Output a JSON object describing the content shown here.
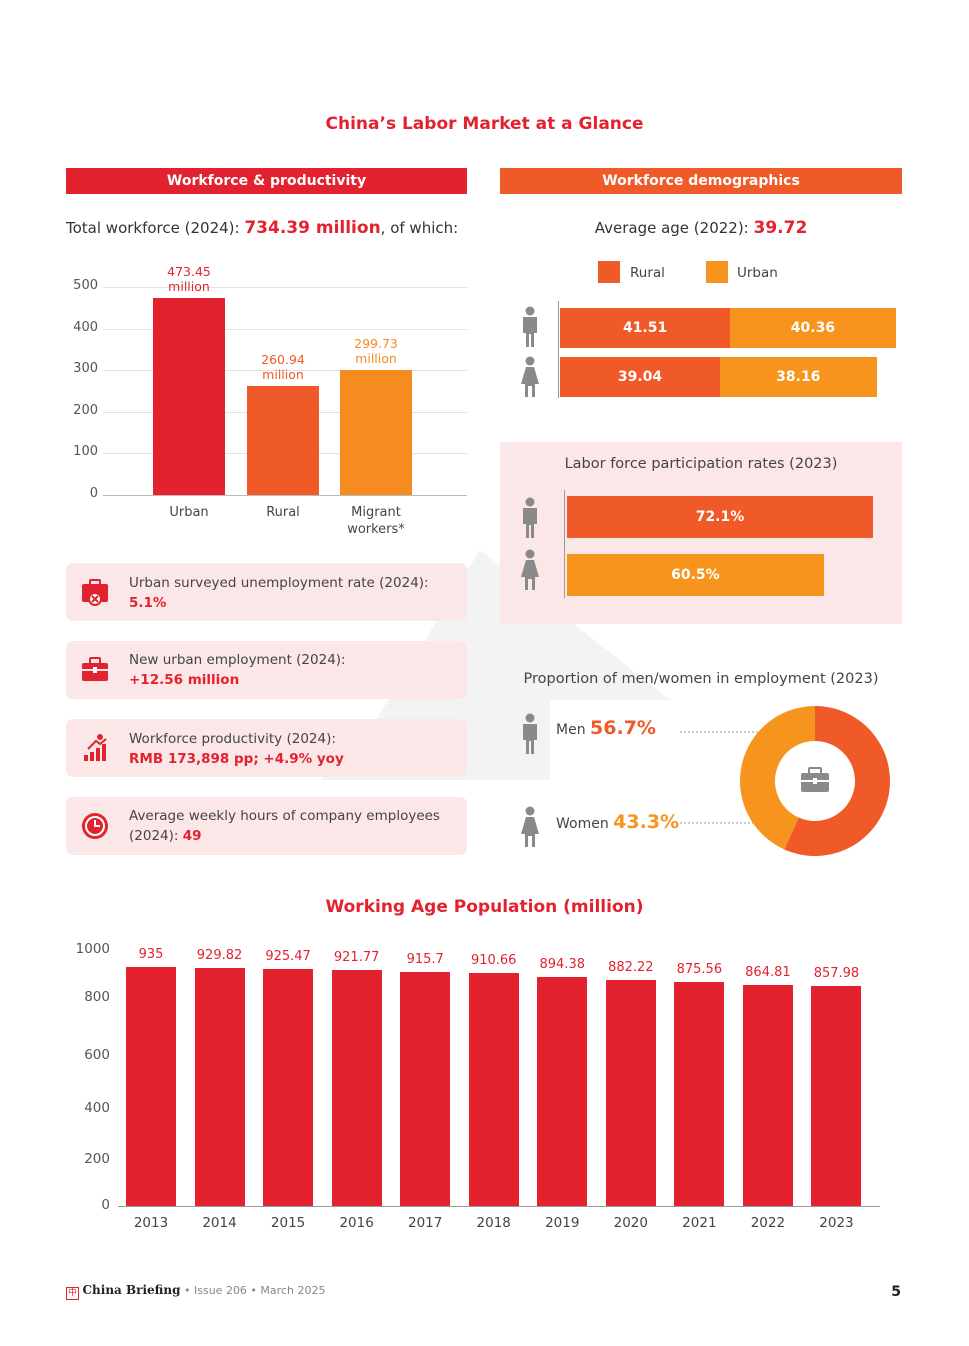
{
  "page_title": "China’s Labor Market at a Glance",
  "left": {
    "banner": "Workforce & productivity",
    "total_prefix": "Total workforce (2024): ",
    "total_value": "734.39 million",
    "total_suffix": ", of which:",
    "cards": [
      {
        "label": "Urban surveyed unemployment rate (2024):",
        "value": "5.1%"
      },
      {
        "label": "New urban employment (2024):",
        "value": "+12.56 million"
      },
      {
        "label": "Workforce productivity (2024):",
        "value": "RMB 173,898 pp; +4.9% yoy"
      },
      {
        "label": "Average weekly hours of company employees",
        "label2": "(2024): ",
        "value": "49"
      }
    ]
  },
  "right": {
    "banner": "Workforce demographics",
    "avg_prefix": "Average age (2022): ",
    "avg_value": "39.72",
    "lfpr_title": "Labor force participation rates (2023)",
    "proportion_title": "Proportion of men/women in employment (2023)",
    "men_label": "Men",
    "men_value": "56.7%",
    "women_label": "Women",
    "women_value": "43.3%"
  },
  "colors": {
    "red": "#e3222f",
    "orange_red": "#f05a28",
    "orange": "#f68b1f",
    "amber": "#f7941d",
    "pink_panel": "#fbe7e7",
    "gray_icon": "#8a8a8a"
  },
  "chart_data": [
    {
      "type": "bar",
      "categories": [
        "Urban",
        "Rural",
        "Migrant workers*"
      ],
      "values": [
        473.45,
        260.94,
        299.73
      ],
      "value_labels": [
        "473.45\nmillion",
        "260.94\nmillion",
        "299.73\nmillion"
      ],
      "ylim": [
        0,
        500
      ],
      "yticks": [
        0,
        100,
        200,
        300,
        400,
        500
      ],
      "grid": true
    },
    {
      "type": "bar",
      "orientation": "horizontal",
      "stacked": true,
      "categories": [
        "Men",
        "Women"
      ],
      "series": [
        {
          "name": "Rural",
          "values": [
            41.51,
            39.04
          ]
        },
        {
          "name": "Urban",
          "values": [
            40.36,
            38.16
          ]
        }
      ],
      "legend": "top"
    },
    {
      "type": "bar",
      "orientation": "horizontal",
      "title": "Labor force participation rates (2023)",
      "categories": [
        "Men",
        "Women"
      ],
      "values": [
        72.1,
        60.5
      ],
      "value_labels": [
        "72.1%",
        "60.5%"
      ]
    },
    {
      "type": "pie",
      "donut": true,
      "title": "Proportion of men/women in employment (2023)",
      "categories": [
        "Men",
        "Women"
      ],
      "values": [
        56.7,
        43.3
      ]
    },
    {
      "type": "bar",
      "title": "Working Age Population (million)",
      "categories": [
        "2013",
        "2014",
        "2015",
        "2016",
        "2017",
        "2018",
        "2019",
        "2020",
        "2021",
        "2022",
        "2023"
      ],
      "values": [
        935,
        929.82,
        925.47,
        921.77,
        915.7,
        910.66,
        894.38,
        882.22,
        875.56,
        864.81,
        857.98
      ],
      "yticks": [
        0,
        200,
        400,
        600,
        800,
        1000
      ],
      "ylim": [
        0,
        1000
      ]
    }
  ],
  "footer": {
    "brand": "China Briefing",
    "issue": " • Issue 206 • March 2025",
    "page": "5"
  }
}
